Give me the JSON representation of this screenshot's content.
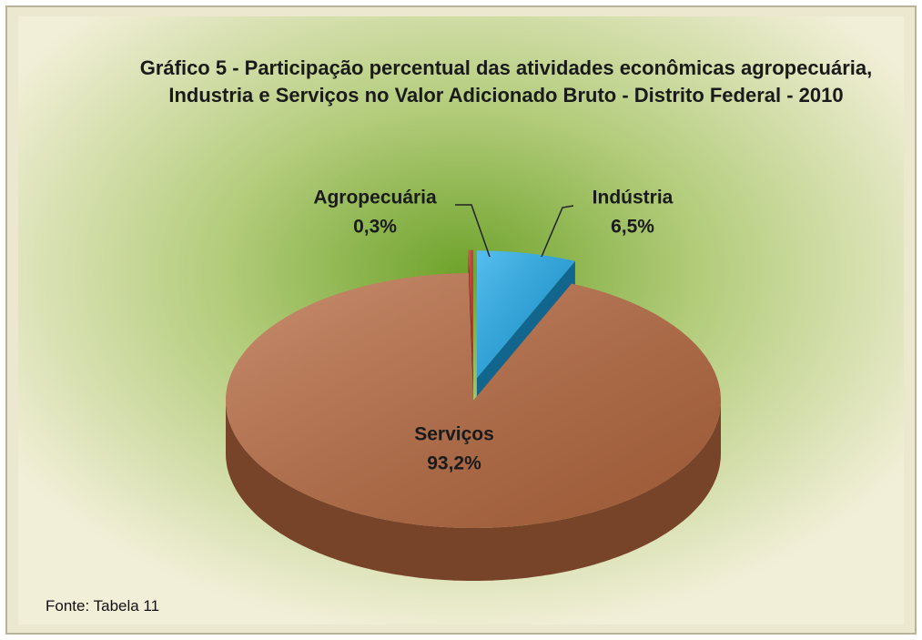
{
  "chart_data": {
    "type": "pie",
    "title": "Gráfico 5 - Participação percentual das atividades econômicas agropecuária, Industria e Serviços no Valor Adicionado Bruto - Distrito Federal - 2010",
    "categories": [
      "Indústria",
      "Serviços",
      "Agropecuária"
    ],
    "values": [
      6.5,
      93.2,
      0.3
    ],
    "value_labels": [
      "6,5%",
      "93,2%",
      "0,3%"
    ],
    "colors": [
      "#1ea9ea",
      "#b8693f",
      "#c8282a"
    ],
    "source": "Fonte: Tabela 11"
  }
}
